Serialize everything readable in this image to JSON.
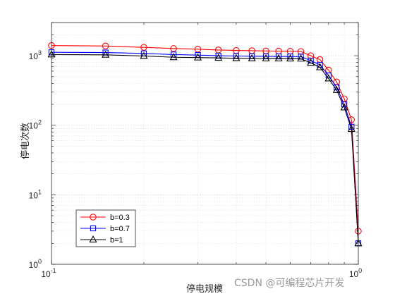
{
  "chart_data": {
    "type": "line",
    "xscale": "log",
    "yscale": "log",
    "xlim": [
      0.1,
      1
    ],
    "ylim": [
      1,
      3000
    ],
    "xlabel": "停电规模",
    "ylabel": "停电次数",
    "x_tick_labels": [
      {
        "value": 0.1,
        "base": "10",
        "exp": "-1"
      },
      {
        "value": 1,
        "base": "10",
        "exp": "0"
      }
    ],
    "y_tick_labels": [
      {
        "value": 1,
        "base": "10",
        "exp": "0"
      },
      {
        "value": 10,
        "base": "10",
        "exp": "1"
      },
      {
        "value": 100,
        "base": "10",
        "exp": "2"
      },
      {
        "value": 1000,
        "base": "10",
        "exp": "3"
      }
    ],
    "grid": true,
    "legend_position": "bottom-left",
    "series": [
      {
        "name": "b=0.3",
        "color": "#ff0000",
        "marker": "circle",
        "x": [
          0.1,
          0.15,
          0.2,
          0.25,
          0.3,
          0.35,
          0.4,
          0.45,
          0.5,
          0.55,
          0.6,
          0.65,
          0.7,
          0.75,
          0.8,
          0.85,
          0.9,
          0.95,
          1.0
        ],
        "y": [
          1400,
          1380,
          1320,
          1270,
          1240,
          1210,
          1190,
          1180,
          1170,
          1165,
          1160,
          1150,
          1000,
          880,
          620,
          420,
          240,
          120,
          3
        ]
      },
      {
        "name": "b=0.7",
        "color": "#0000ff",
        "marker": "square",
        "x": [
          0.1,
          0.15,
          0.2,
          0.25,
          0.3,
          0.35,
          0.4,
          0.45,
          0.5,
          0.55,
          0.6,
          0.65,
          0.7,
          0.75,
          0.8,
          0.85,
          0.9,
          0.95,
          1.0
        ],
        "y": [
          1120,
          1110,
          1080,
          1040,
          1020,
          1000,
          990,
          985,
          980,
          978,
          975,
          970,
          850,
          740,
          520,
          350,
          200,
          95,
          2
        ]
      },
      {
        "name": "b=1",
        "color": "#000000",
        "marker": "triangle",
        "x": [
          0.1,
          0.15,
          0.2,
          0.25,
          0.3,
          0.35,
          0.4,
          0.45,
          0.5,
          0.55,
          0.6,
          0.65,
          0.7,
          0.75,
          0.8,
          0.85,
          0.9,
          0.95,
          1.0
        ],
        "y": [
          1040,
          1030,
          990,
          950,
          940,
          930,
          920,
          915,
          912,
          910,
          908,
          905,
          790,
          680,
          470,
          320,
          180,
          88,
          2
        ]
      }
    ]
  },
  "watermark": "CSDN @可编程芯片开发"
}
